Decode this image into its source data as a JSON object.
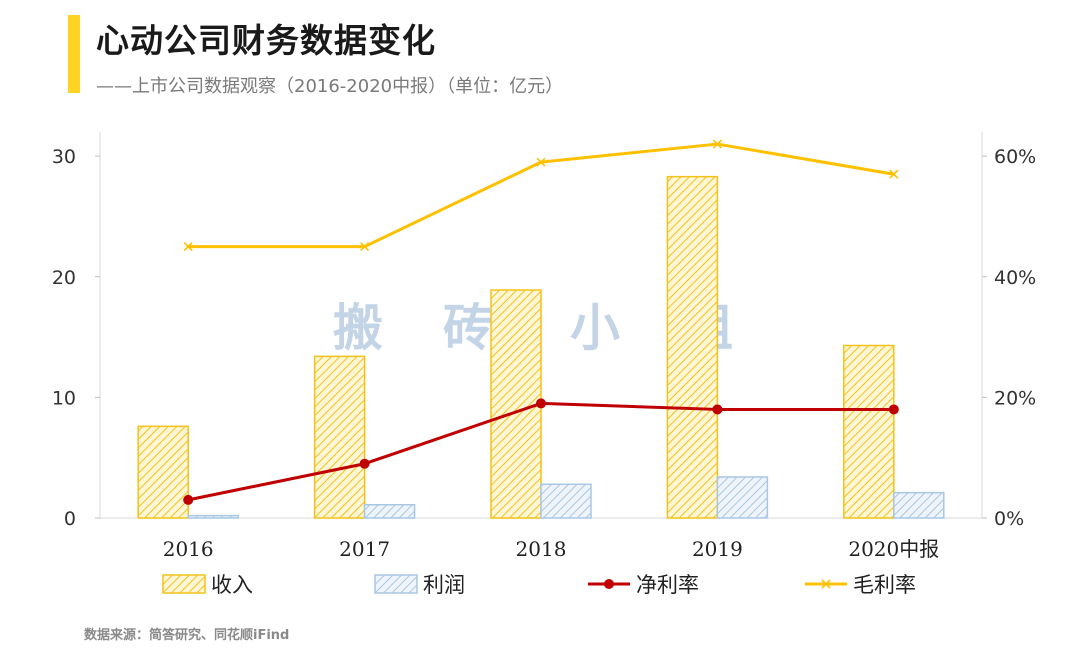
{
  "header": {
    "title": "心动公司财务数据变化",
    "subtitle": "——上市公司数据观察（2016-2020中报）（单位：亿元）",
    "accent_color": "#FFD321"
  },
  "source": "数据来源：简答研究、同花顺iFind",
  "watermark": [
    "搬",
    "砖",
    "小",
    "组"
  ],
  "chart_data": {
    "type": "bar",
    "categories": [
      "2016",
      "2017",
      "2018",
      "2019",
      "2020中报"
    ],
    "y_left": {
      "lim": [
        0,
        32
      ],
      "ticks": [
        0,
        10,
        20,
        30
      ]
    },
    "y_right": {
      "lim": [
        0,
        0.64
      ],
      "ticks": [
        0,
        0.2,
        0.4,
        0.6
      ],
      "tick_labels": [
        "0%",
        "20%",
        "40%",
        "60%"
      ]
    },
    "series": [
      {
        "name": "收入",
        "kind": "bar",
        "axis": "left",
        "values": [
          7.6,
          13.4,
          18.9,
          28.3,
          14.3
        ],
        "color": "#F5C518",
        "pattern": "hatch"
      },
      {
        "name": "利润",
        "kind": "bar",
        "axis": "left",
        "values": [
          0.2,
          1.1,
          2.8,
          3.4,
          2.1
        ],
        "color": "#8FB6DA",
        "pattern": "hatch"
      },
      {
        "name": "净利率",
        "kind": "line",
        "axis": "right",
        "values": [
          0.03,
          0.09,
          0.19,
          0.18,
          0.18
        ],
        "color": "#C00000",
        "marker": "circle"
      },
      {
        "name": "毛利率",
        "kind": "line",
        "axis": "right",
        "values": [
          0.45,
          0.45,
          0.59,
          0.62,
          0.57
        ],
        "color": "#FFC000",
        "marker": "x"
      }
    ],
    "legend": "bottom",
    "grid": false
  }
}
